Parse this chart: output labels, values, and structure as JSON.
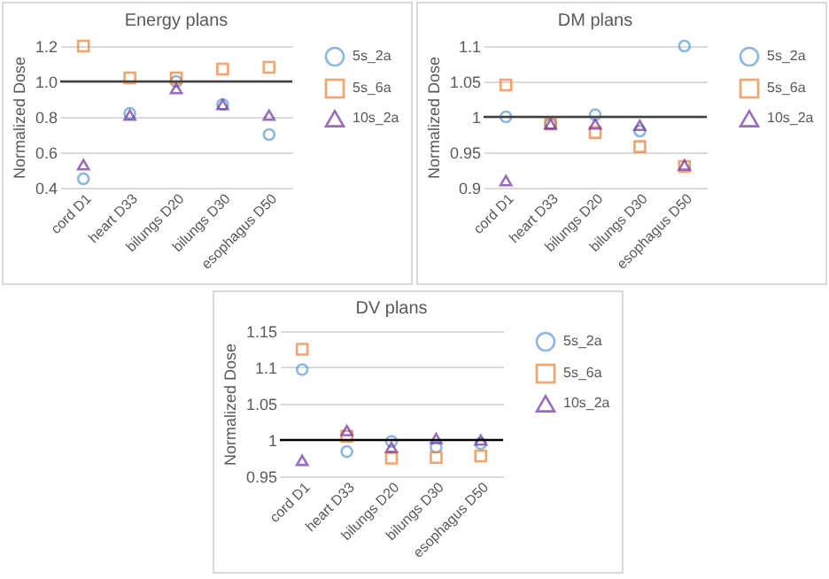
{
  "chart_data": [
    {
      "type": "scatter",
      "title": "Energy plans",
      "ylabel": "Normalized Dose",
      "categories": [
        "cord D1",
        "heart D33",
        "bilungs D20",
        "bilungs D30",
        "esophagus D50"
      ],
      "series": [
        {
          "name": "5s_2a",
          "color": "#5b9bd5",
          "marker": "circle",
          "values": [
            0.45,
            0.82,
            1.0,
            0.87,
            0.7
          ]
        },
        {
          "name": "5s_6a",
          "color": "#ed7d31",
          "marker": "square",
          "values": [
            1.2,
            1.02,
            1.02,
            1.07,
            1.08
          ]
        },
        {
          "name": "10s_2a",
          "color": "#7030a0",
          "marker": "triangle",
          "values": [
            0.53,
            0.81,
            0.96,
            0.87,
            0.81
          ]
        }
      ],
      "ylim": [
        0.4,
        1.2
      ],
      "yticks": [
        0.4,
        0.6,
        0.8,
        {
          "value": 1,
          "label": "1.0"
        },
        1.2
      ],
      "grid": "y",
      "legend": "right",
      "ref_lines": [
        {
          "axis": "y",
          "value": 1,
          "color": "#404040"
        }
      ]
    },
    {
      "type": "scatter",
      "title": "DM plans",
      "ylabel": "Normalized Dose",
      "categories": [
        "cord D1",
        "heart D33",
        "bilungs D20",
        "bilungs D30",
        "esophagus D50"
      ],
      "series": [
        {
          "name": "5s_2a",
          "color": "#5b9bd5",
          "marker": "circle",
          "values": [
            1.0,
            0.99,
            1.003,
            0.98,
            1.1
          ]
        },
        {
          "name": "5s_6a",
          "color": "#ed7d31",
          "marker": "square",
          "values": [
            1.045,
            0.99,
            0.978,
            0.958,
            0.93
          ]
        },
        {
          "name": "10s_2a",
          "color": "#7030a0",
          "marker": "triangle",
          "values": [
            0.91,
            0.99,
            0.99,
            0.988,
            0.932
          ]
        }
      ],
      "ylim": [
        0.9,
        1.1
      ],
      "yticks": [
        0.9,
        0.95,
        1,
        1.05,
        1.1
      ],
      "grid": "y",
      "legend": "right",
      "ref_lines": [
        {
          "axis": "y",
          "value": 1,
          "color": "#404040"
        }
      ]
    },
    {
      "type": "scatter",
      "title": "DV plans",
      "ylabel": "Normalized Dose",
      "categories": [
        "cord D1",
        "heart D33",
        "bilungs D20",
        "bilungs D30",
        "esophagus D50"
      ],
      "series": [
        {
          "name": "5s_2a",
          "color": "#5b9bd5",
          "marker": "circle",
          "values": [
            1.097,
            0.984,
            0.998,
            0.99,
            0.995
          ]
        },
        {
          "name": "5s_6a",
          "color": "#ed7d31",
          "marker": "square",
          "values": [
            1.125,
            1.005,
            0.975,
            0.976,
            0.978
          ]
        },
        {
          "name": "10s_2a",
          "color": "#7030a0",
          "marker": "triangle",
          "values": [
            0.972,
            1.013,
            0.99,
            1.002,
            1.0
          ]
        }
      ],
      "ylim": [
        0.95,
        1.15
      ],
      "yticks": [
        0.95,
        1,
        1.05,
        1.1,
        1.15
      ],
      "grid": "y",
      "legend": "right",
      "ref_lines": [
        {
          "axis": "y",
          "value": 1,
          "color": "#000000"
        }
      ]
    }
  ]
}
